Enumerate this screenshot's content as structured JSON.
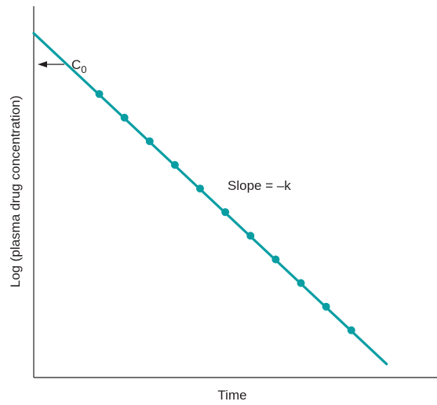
{
  "chart_data": {
    "type": "line",
    "title": "",
    "xlabel": "Time",
    "ylabel": "Log (plasma drug concentration)",
    "x_ticks_shown": false,
    "y_ticks_shown": false,
    "grid": false,
    "legend": "none",
    "series": [
      {
        "points": [
          {
            "x": 2.6,
            "y": 0.74
          },
          {
            "x": 3.6,
            "y": 0.67
          },
          {
            "x": 4.6,
            "y": 0.6
          },
          {
            "x": 5.6,
            "y": 0.53
          },
          {
            "x": 6.6,
            "y": 0.46
          },
          {
            "x": 7.6,
            "y": 0.39
          },
          {
            "x": 8.6,
            "y": 0.32
          },
          {
            "x": 9.6,
            "y": 0.25
          },
          {
            "x": 10.6,
            "y": 0.18
          },
          {
            "x": 11.6,
            "y": 0.11
          },
          {
            "x": 12.6,
            "y": 0.04
          }
        ]
      }
    ],
    "line": {
      "x_start": 0,
      "y_start": 0.92,
      "x_end": 14,
      "y_end": -0.06
    },
    "xlim": [
      0,
      16
    ],
    "ylim": [
      -0.1,
      1.0
    ],
    "annotations": {
      "intercept_sub": "0",
      "intercept_main": "C",
      "slope": "Slope = –k"
    },
    "colors": {
      "line": "#0a9ea3",
      "points": "#0a9ea3",
      "axis": "#231f20"
    }
  }
}
